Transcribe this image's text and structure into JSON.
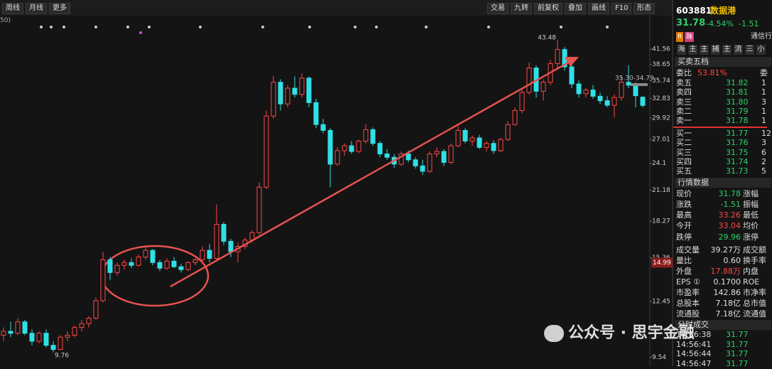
{
  "toolbar": {
    "left": [
      "周线",
      "月线",
      "更多"
    ],
    "right": [
      "交易",
      "九转",
      "前复权",
      "叠加",
      "画线",
      "F10",
      "形态"
    ]
  },
  "ma_label": "50)",
  "chart_data": {
    "type": "candlestick",
    "log_scale": true,
    "up_color": "#ff4646",
    "down_color": "#2fe0e6",
    "ylim": [
      9.3,
      47.0
    ],
    "yticks": [
      41.56,
      38.65,
      35.74,
      32.83,
      29.92,
      27.01,
      24.1,
      21.18,
      18.27,
      15.36,
      12.45,
      9.54
    ],
    "high_label": 43.48,
    "low_label": 9.76,
    "cursor_price": 14.99,
    "range_label": "35.30-34.79",
    "ohlc": [
      [
        10.6,
        11.0,
        10.3,
        10.8
      ],
      [
        10.8,
        11.3,
        10.5,
        10.7
      ],
      [
        10.7,
        11.5,
        10.6,
        11.3
      ],
      [
        11.3,
        11.4,
        10.6,
        10.7
      ],
      [
        10.7,
        10.9,
        10.1,
        10.3
      ],
      [
        10.3,
        10.8,
        10.2,
        10.7
      ],
      [
        10.7,
        10.9,
        10.0,
        10.1
      ],
      [
        10.1,
        10.3,
        9.76,
        9.9
      ],
      [
        9.9,
        10.6,
        9.9,
        10.5
      ],
      [
        10.5,
        10.8,
        10.3,
        10.6
      ],
      [
        10.6,
        11.1,
        10.5,
        11.0
      ],
      [
        11.0,
        11.4,
        10.8,
        11.2
      ],
      [
        11.2,
        11.6,
        11.0,
        11.5
      ],
      [
        11.5,
        12.7,
        11.4,
        12.5
      ],
      [
        12.5,
        15.8,
        12.4,
        15.2
      ],
      [
        15.2,
        15.4,
        13.8,
        14.3
      ],
      [
        14.3,
        15.0,
        14.1,
        14.8
      ],
      [
        14.8,
        15.2,
        14.5,
        15.0
      ],
      [
        15.0,
        15.3,
        14.6,
        14.8
      ],
      [
        14.8,
        15.6,
        14.7,
        15.4
      ],
      [
        15.4,
        16.2,
        15.2,
        15.9
      ],
      [
        15.9,
        16.0,
        14.8,
        15.0
      ],
      [
        15.0,
        15.2,
        14.4,
        14.6
      ],
      [
        14.6,
        15.3,
        14.5,
        15.1
      ],
      [
        15.1,
        15.4,
        14.6,
        14.7
      ],
      [
        14.7,
        14.9,
        14.3,
        14.5
      ],
      [
        14.5,
        15.1,
        14.4,
        15.0
      ],
      [
        15.0,
        15.3,
        14.8,
        15.2
      ],
      [
        15.2,
        16.2,
        15.0,
        15.9
      ],
      [
        15.9,
        16.4,
        15.0,
        15.3
      ],
      [
        15.3,
        19.8,
        15.2,
        18.0
      ],
      [
        18.0,
        18.2,
        16.3,
        16.6
      ],
      [
        16.6,
        16.8,
        15.4,
        15.8
      ],
      [
        15.8,
        16.5,
        15.0,
        16.2
      ],
      [
        16.2,
        16.9,
        16.0,
        16.7
      ],
      [
        16.7,
        17.5,
        16.5,
        17.3
      ],
      [
        17.3,
        22.0,
        17.1,
        21.5
      ],
      [
        21.5,
        31.0,
        21.3,
        30.2
      ],
      [
        30.2,
        36.6,
        29.8,
        35.5
      ],
      [
        35.5,
        36.0,
        31.0,
        32.0
      ],
      [
        32.0,
        35.0,
        31.5,
        34.5
      ],
      [
        34.5,
        36.5,
        33.0,
        33.5
      ],
      [
        33.5,
        37.0,
        33.0,
        36.2
      ],
      [
        36.2,
        36.5,
        31.5,
        32.2
      ],
      [
        32.2,
        32.8,
        28.5,
        29.0
      ],
      [
        29.0,
        29.8,
        27.8,
        28.2
      ],
      [
        28.2,
        28.5,
        21.5,
        24.0
      ],
      [
        24.0,
        26.0,
        23.8,
        25.6
      ],
      [
        25.6,
        26.5,
        25.0,
        26.2
      ],
      [
        26.2,
        26.8,
        25.2,
        25.5
      ],
      [
        25.5,
        27.0,
        25.3,
        26.8
      ],
      [
        26.8,
        29.0,
        26.5,
        28.3
      ],
      [
        28.3,
        28.6,
        26.2,
        26.5
      ],
      [
        26.5,
        26.8,
        24.8,
        25.2
      ],
      [
        25.2,
        25.8,
        24.5,
        24.8
      ],
      [
        24.8,
        25.2,
        23.6,
        24.0
      ],
      [
        24.0,
        25.5,
        23.8,
        25.2
      ],
      [
        25.2,
        25.6,
        24.2,
        24.5
      ],
      [
        24.5,
        24.8,
        23.5,
        23.8
      ],
      [
        23.8,
        24.5,
        22.8,
        23.2
      ],
      [
        23.2,
        25.5,
        23.0,
        25.2
      ],
      [
        25.2,
        26.0,
        24.8,
        25.5
      ],
      [
        25.5,
        25.8,
        23.8,
        24.2
      ],
      [
        24.2,
        26.5,
        24.0,
        26.2
      ],
      [
        26.2,
        28.8,
        26.0,
        28.2
      ],
      [
        28.2,
        28.5,
        26.5,
        26.8
      ],
      [
        26.8,
        27.5,
        26.2,
        27.2
      ],
      [
        27.2,
        27.6,
        25.8,
        26.0
      ],
      [
        26.0,
        26.8,
        25.5,
        26.5
      ],
      [
        26.5,
        26.9,
        25.2,
        25.6
      ],
      [
        25.6,
        27.2,
        25.4,
        27.0
      ],
      [
        27.0,
        29.5,
        26.8,
        29.0
      ],
      [
        29.0,
        31.5,
        28.8,
        31.0
      ],
      [
        31.0,
        34.5,
        30.6,
        33.8
      ],
      [
        33.8,
        39.0,
        33.5,
        38.0
      ],
      [
        38.0,
        38.5,
        33.0,
        34.0
      ],
      [
        34.0,
        36.0,
        32.5,
        35.5
      ],
      [
        35.5,
        39.5,
        35.0,
        38.8
      ],
      [
        38.8,
        43.48,
        38.0,
        41.5
      ],
      [
        41.5,
        42.0,
        37.5,
        38.2
      ],
      [
        38.2,
        38.8,
        34.5,
        35.2
      ],
      [
        35.2,
        35.8,
        33.0,
        33.6
      ],
      [
        33.6,
        34.5,
        33.0,
        34.2
      ],
      [
        34.2,
        35.0,
        32.8,
        33.2
      ],
      [
        33.2,
        33.8,
        32.0,
        32.5
      ],
      [
        32.5,
        33.2,
        31.5,
        31.8
      ],
      [
        31.8,
        33.5,
        30.0,
        33.0
      ],
      [
        33.0,
        36.5,
        32.5,
        35.5
      ],
      [
        35.5,
        38.5,
        34.5,
        35.0
      ],
      [
        35.0,
        35.5,
        31.5,
        33.28
      ],
      [
        33.04,
        33.26,
        31.5,
        31.78
      ]
    ]
  },
  "quote": {
    "code": "603881",
    "name": "数据港",
    "price": "31.78",
    "change_pct": "-4.54%",
    "change": "-1.51",
    "badges": [
      "R",
      "融"
    ],
    "industry": "通信行"
  },
  "tabs": [
    "海",
    "主",
    "主",
    "捕",
    "主",
    "流",
    "三",
    "小"
  ],
  "order_book": {
    "title": "买卖五档",
    "ratio_label": "委比",
    "ratio": "53.81%",
    "ratio_right": "委",
    "asks": [
      {
        "label": "卖五",
        "price": "31.82",
        "vol": "1"
      },
      {
        "label": "卖四",
        "price": "31.81",
        "vol": "1"
      },
      {
        "label": "卖三",
        "price": "31.80",
        "vol": "3"
      },
      {
        "label": "卖二",
        "price": "31.79",
        "vol": "1"
      },
      {
        "label": "卖一",
        "price": "31.78",
        "vol": "1"
      }
    ],
    "bids": [
      {
        "label": "买一",
        "price": "31.77",
        "vol": "12"
      },
      {
        "label": "买二",
        "price": "31.76",
        "vol": "3"
      },
      {
        "label": "买三",
        "price": "31.75",
        "vol": "6"
      },
      {
        "label": "买四",
        "price": "31.74",
        "vol": "2"
      },
      {
        "label": "买五",
        "price": "31.73",
        "vol": "5"
      }
    ]
  },
  "market": {
    "title": "行情数据",
    "rows": [
      {
        "label": "现价",
        "value": "31.78",
        "label2": "涨幅",
        "color": "#2ed06a"
      },
      {
        "label": "涨跌",
        "value": "-1.51",
        "label2": "振幅",
        "color": "#2ed06a"
      },
      {
        "label": "最高",
        "value": "33.26",
        "label2": "最低",
        "color": "#ff4646"
      },
      {
        "label": "今开",
        "value": "33.04",
        "label2": "均价",
        "color": "#ff4646"
      },
      {
        "label": "跌停",
        "value": "29.96",
        "label2": "涨停",
        "color": "#2ed06a"
      },
      {
        "label": "成交量",
        "value": "39.27万",
        "label2": "成交额",
        "color": "#e0e0e0"
      },
      {
        "label": "量比",
        "value": "0.60",
        "label2": "换手率",
        "color": "#e0e0e0"
      },
      {
        "label": "外盘",
        "value": "17.88万",
        "label2": "内盘",
        "color": "#ff4646"
      },
      {
        "label": "EPS ①",
        "value": "0.1700",
        "label2": "ROE",
        "color": "#e0e0e0"
      },
      {
        "label": "市盈率",
        "value": "142.86",
        "label2": "市净率",
        "color": "#e0e0e0"
      },
      {
        "label": "总股本",
        "value": "7.18亿",
        "label2": "总市值",
        "color": "#e0e0e0"
      },
      {
        "label": "流通股",
        "value": "7.18亿",
        "label2": "流通值",
        "color": "#e0e0e0"
      }
    ]
  },
  "trades": {
    "title": "分时成交",
    "rows": [
      {
        "time": "14:56:38",
        "price": "31.77"
      },
      {
        "time": "14:56:41",
        "price": "31.77"
      },
      {
        "time": "14:56:44",
        "price": "31.77"
      },
      {
        "time": "14:56:47",
        "price": "31.77"
      }
    ]
  },
  "watermark": "公众号 · 思宇金融"
}
